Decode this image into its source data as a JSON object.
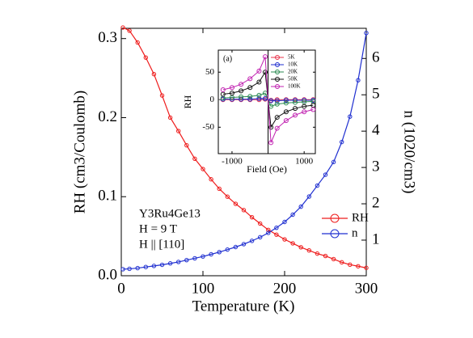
{
  "chart_data": [
    {
      "type": "line",
      "x_label": "Temperature (K)",
      "y_label": "RH (cm3/Coulomb)",
      "y2_label": "n (1020/cm3)",
      "annotations": [
        "Y3Ru4Ge13",
        "H = 9 T",
        "H || [110]"
      ],
      "x": [
        2,
        10,
        20,
        30,
        40,
        50,
        60,
        70,
        80,
        90,
        100,
        110,
        120,
        130,
        140,
        150,
        160,
        170,
        180,
        190,
        200,
        210,
        220,
        230,
        240,
        250,
        260,
        270,
        280,
        290,
        300
      ],
      "series": [
        {
          "name": "RH",
          "color": "#ee1c1c",
          "values": [
            0.314,
            0.31,
            0.295,
            0.276,
            0.255,
            0.228,
            0.2,
            0.183,
            0.165,
            0.148,
            0.135,
            0.122,
            0.11,
            0.1,
            0.091,
            0.083,
            0.074,
            0.066,
            0.058,
            0.052,
            0.046,
            0.041,
            0.036,
            0.032,
            0.028,
            0.025,
            0.021,
            0.017,
            0.014,
            0.012,
            0.01
          ]
        },
        {
          "name": "n",
          "color": "#1f2fd0",
          "axis": "y2",
          "values": [
            0.2,
            0.21,
            0.23,
            0.26,
            0.29,
            0.32,
            0.36,
            0.4,
            0.45,
            0.5,
            0.55,
            0.61,
            0.67,
            0.74,
            0.81,
            0.89,
            0.98,
            1.08,
            1.2,
            1.34,
            1.5,
            1.7,
            1.92,
            2.2,
            2.5,
            2.8,
            3.15,
            3.7,
            4.4,
            5.4,
            6.7
          ]
        }
      ],
      "xlim": [
        0,
        300
      ],
      "xticks": [
        0,
        100,
        200,
        300
      ],
      "ylim": [
        0,
        0.313
      ],
      "yticks": [
        {
          "value": 0,
          "label": "0.0"
        },
        0.1,
        0.2,
        0.3
      ],
      "y2lim": [
        0.02,
        6.83
      ],
      "y2ticks": [
        1,
        2,
        3,
        4,
        5,
        6
      ],
      "legend": "lower right"
    },
    {
      "type": "line",
      "title": "(a)",
      "x_label": "Field (Oe)",
      "y_label": "RH",
      "x": [
        -1250,
        -1000,
        -750,
        -500,
        -250,
        -80,
        80,
        250,
        500,
        750,
        1000,
        1250
      ],
      "series": [
        {
          "name": "5K",
          "color": "#e8304a",
          "values": [
            0,
            0,
            0,
            0,
            0,
            1,
            -1,
            0,
            0,
            0,
            0,
            0
          ]
        },
        {
          "name": "10K",
          "color": "#1f2fd0",
          "values": [
            1,
            1,
            1,
            1,
            2,
            2,
            -2,
            -2,
            -1,
            -1,
            -1,
            -1
          ]
        },
        {
          "name": "20K",
          "color": "#2a8a50",
          "values": [
            3,
            4,
            5,
            6,
            8,
            12,
            -12,
            -8,
            -6,
            -5,
            -4,
            -3
          ]
        },
        {
          "name": "50K",
          "color": "#111111",
          "values": [
            10,
            12,
            16,
            22,
            32,
            50,
            -50,
            -32,
            -22,
            -16,
            -12,
            -10
          ]
        },
        {
          "name": "100K",
          "color": "#c020b0",
          "values": [
            18,
            22,
            28,
            38,
            52,
            78,
            -78,
            -52,
            -38,
            -28,
            -22,
            -18
          ]
        }
      ],
      "xlim": [
        -1380,
        1310
      ],
      "xticks": [
        -1000,
        1000
      ],
      "ylim": [
        -98,
        90
      ],
      "yticks": [
        -50,
        0,
        50
      ],
      "legend": "upper right"
    }
  ]
}
